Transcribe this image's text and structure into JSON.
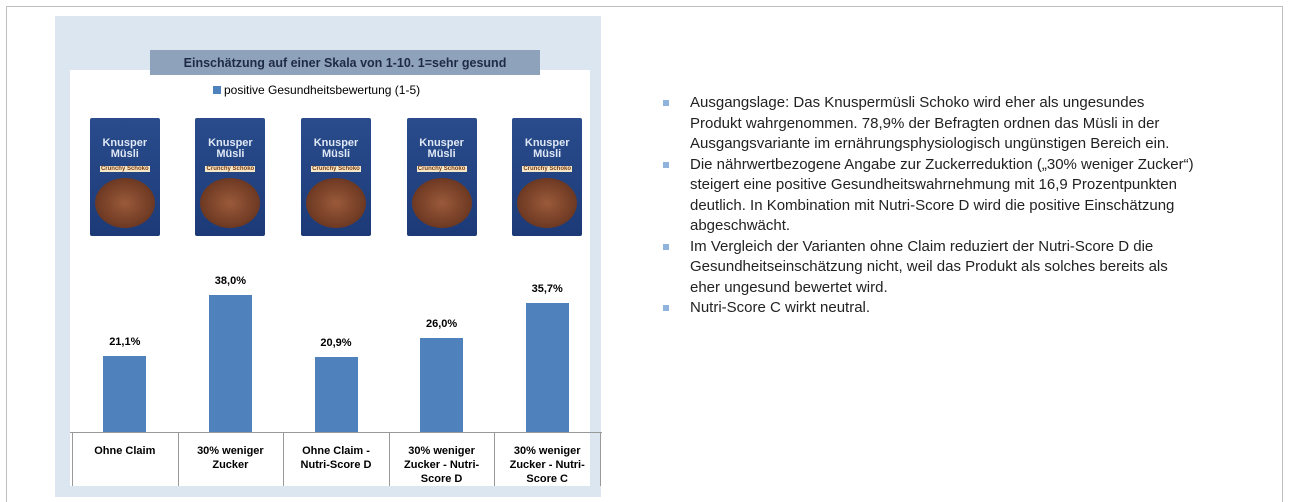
{
  "chart_data": {
    "type": "bar",
    "title": "Einschätzung auf einer Skala von 1-10. 1=sehr gesund",
    "categories": [
      "Ohne Claim",
      "30% weniger Zucker",
      "Ohne Claim - Nutri-Score D",
      "30% weniger Zucker - Nutri-Score D",
      "30% weniger Zucker - Nutri-Score C"
    ],
    "series": [
      {
        "name": "positive Gesundheitsbewertung (1-5)",
        "color": "#4f81bd",
        "values": [
          21.1,
          38.0,
          20.9,
          26.0,
          35.7
        ],
        "value_labels": [
          "21,1%",
          "38,0%",
          "20,9%",
          "26,0%",
          "35,7%"
        ]
      }
    ],
    "product_label": {
      "brand": "Knusper Müsli",
      "variety": "Crunchy Schoko"
    }
  },
  "bullets": [
    "Ausgangslage: Das Knuspermüsli Schoko wird eher als ungesundes Produkt wahrgenommen. 78,9% der Befragten ordnen das Müsli in der Ausgangsvariante im ernährungsphysiologisch ungünstigen Bereich ein.",
    "Die nährwertbezogene Angabe zur Zuckerreduktion („30% weniger Zucker“) steigert eine positive Gesundheitswahrnehmung mit 16,9 Prozentpunkten deutlich. In Kombination mit Nutri-Score D wird die positive Einschätzung abgeschwächt.",
    "Im Vergleich der Varianten ohne Claim reduziert der Nutri-Score D die Gesundheitseinschätzung nicht, weil das Produkt als solches bereits als eher ungesund bewertet wird.",
    "Nutri-Score C wirkt neutral."
  ]
}
